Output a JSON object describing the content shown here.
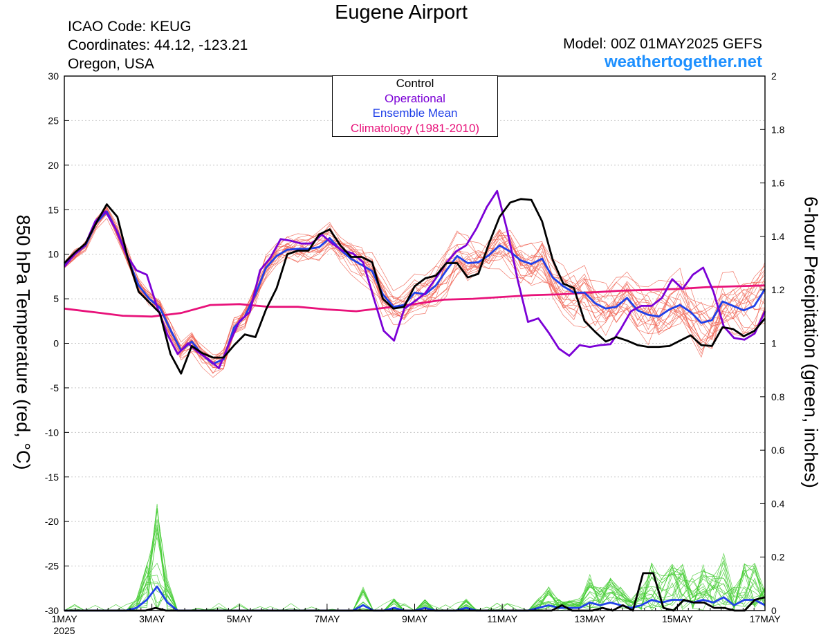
{
  "header": {
    "title": "Eugene Airport",
    "icao": "ICAO Code: KEUG",
    "coordinates": "Coordinates: 44.12, -123.21",
    "location": "Oregon, USA",
    "model": "Model: 00Z 01MAY2025 GEFS",
    "site": "weathertogether.net"
  },
  "legend": {
    "control": "Control",
    "operational": "Operational",
    "ensemble_mean": "Ensemble Mean",
    "climatology": "Climatology (1981-2010)"
  },
  "colors": {
    "control": "#000000",
    "operational": "#7b00d6",
    "ensemble_mean": "#2040e8",
    "climatology": "#e8127a",
    "members_temp": "#f06050",
    "members_precip": "#44cc33",
    "site": "#1e90ff"
  },
  "chart_data": {
    "type": "line",
    "title": "Eugene Airport",
    "ylabel_left": "850 hPa Temperature (red, °C)",
    "ylabel_right": "6-hour Precipitation (green, inches)",
    "y_left_range": [
      -30,
      30
    ],
    "y_right_range": [
      0,
      2
    ],
    "y_left_ticks": [
      "30",
      "25",
      "20",
      "15",
      "10",
      "5",
      "0",
      "-5",
      "-10",
      "-15",
      "-20",
      "-25",
      "-30"
    ],
    "y_right_ticks": [
      "2",
      "1.8",
      "1.6",
      "1.4",
      "1.2",
      "1",
      "0.8",
      "0.6",
      "0.4",
      "0.2",
      "0"
    ],
    "x_ticks": [
      "1MAY",
      "3MAY",
      "5MAY",
      "7MAY",
      "9MAY",
      "11MAY",
      "13MAY",
      "15MAY",
      "17MAY"
    ],
    "x_year_label": "2025",
    "x_step_hours": 6,
    "grid": "dashed horizontal",
    "legend_position": "top-center",
    "series": [
      {
        "name": "Control",
        "axis": "left",
        "values": [
          9,
          10.2,
          11.2,
          13.5,
          15.6,
          14.2,
          9.5,
          5.8,
          4.6,
          3.4,
          -1.2,
          -3.4,
          -0.3,
          -1.1,
          -1.6,
          -1.6,
          -0.2,
          1,
          0.7,
          3.8,
          6.2,
          10,
          10.4,
          10.4,
          12.2,
          12.8,
          11,
          9.7,
          9.7,
          9.1,
          5,
          3.9,
          4.1,
          6.4,
          7.3,
          7.6,
          9,
          9,
          7.4,
          7.8,
          11.2,
          14.2,
          15.8,
          16.2,
          16.1,
          13.7,
          9.4,
          6.7,
          6.2,
          2.5,
          1.3,
          0.2,
          0.7,
          0.3,
          -0.2,
          -0.4,
          -0.4,
          -0.3,
          0.3,
          0.9,
          -0.2,
          -0.3,
          1.8,
          1.6,
          0.8,
          1.4,
          2.8
        ]
      },
      {
        "name": "Operational",
        "axis": "left",
        "values": [
          8.6,
          10,
          11,
          13.7,
          14.8,
          12.8,
          10,
          8.2,
          7.7,
          4.1,
          1,
          -1.2,
          0,
          -1,
          -1.8,
          -2.8,
          0,
          2.5,
          3.5,
          8.2,
          9.6,
          11.7,
          11.5,
          11.2,
          11.2,
          12.2,
          11.2,
          10.4,
          10.1,
          9.1,
          5.2,
          1.4,
          0.3,
          3.9,
          4.7,
          5.6,
          7.2,
          8.9,
          10.3,
          11,
          12.9,
          15.3,
          17.1,
          12.6,
          7.1,
          2.4,
          2.8,
          1.2,
          -0.6,
          -1.4,
          -0.2,
          -0.4,
          -0.2,
          -0.1,
          1.6,
          3.6,
          4.2,
          4.2,
          5.1,
          7.2,
          6.1,
          7.7,
          8.5,
          5.8,
          1.9,
          0.6,
          0.4,
          1.1,
          3.6
        ]
      },
      {
        "name": "Ensemble Mean",
        "axis": "left",
        "values": [
          8.8,
          10,
          11,
          13.5,
          14.8,
          12.5,
          9.5,
          6.5,
          5,
          4,
          1.5,
          -0.8,
          0.2,
          -1.3,
          -2.3,
          -1.8,
          1.8,
          3,
          5.5,
          8.5,
          9.8,
          10.5,
          10.6,
          10.6,
          10.8,
          11.8,
          10.5,
          9.5,
          8.8,
          8.1,
          5.5,
          4.1,
          4.3,
          5.7,
          5.5,
          6.5,
          8.2,
          9.8,
          9,
          9.1,
          9.9,
          11,
          10.3,
          9.3,
          8.9,
          9.5,
          7.4,
          6.4,
          5.7,
          5.7,
          4.5,
          3.9,
          4.1,
          5.1,
          3.7,
          3.2,
          3,
          3.8,
          4.3,
          3.5,
          2.3,
          2.6,
          4.7,
          4.2,
          3.7,
          4.2,
          6.1
        ]
      },
      {
        "name": "Climatology (1981-2010)",
        "axis": "left",
        "values": [
          3.9,
          3.5,
          3.1,
          3,
          3.4,
          4.3,
          4.4,
          4.1,
          4.1,
          3.8,
          3.6,
          4,
          4.4,
          4.9,
          5,
          5.2,
          5.4,
          5.5,
          5.7,
          5.9,
          6,
          6.1,
          6.3,
          6.4,
          6.5
        ]
      },
      {
        "name": "Control",
        "axis": "right",
        "values": [
          0,
          0,
          0,
          0,
          0,
          0,
          0,
          0,
          0,
          0.01,
          0,
          0,
          0,
          0,
          0,
          0,
          0,
          0,
          0,
          0,
          0,
          0,
          0,
          0,
          0,
          0,
          0,
          0,
          0,
          0,
          0,
          0,
          0,
          0,
          0,
          0,
          0,
          0,
          0,
          0,
          0,
          0,
          0,
          0,
          0,
          0,
          0,
          0,
          0,
          0.02,
          0,
          0,
          0,
          0.01,
          0,
          0.02,
          0,
          0.14,
          0.14,
          0.01,
          0,
          0.04,
          0.03,
          0.03,
          0.01,
          0.01,
          0,
          0,
          0.04,
          0.05
        ]
      },
      {
        "name": "Ensemble Mean",
        "axis": "right",
        "values": [
          0,
          0,
          0,
          0,
          0,
          0,
          0,
          0.01,
          0.04,
          0.09,
          0.03,
          0,
          0,
          0,
          0,
          0,
          0,
          0,
          0,
          0,
          0,
          0,
          0,
          0,
          0,
          0,
          0,
          0,
          0,
          0.02,
          0,
          0,
          0.01,
          0,
          0,
          0.01,
          0,
          0,
          0,
          0.01,
          0,
          0,
          0,
          0,
          0,
          0,
          0.01,
          0.02,
          0.01,
          0.01,
          0.01,
          0.03,
          0.02,
          0.03,
          0.02,
          0.01,
          0.02,
          0.04,
          0.03,
          0.04,
          0.04,
          0.03,
          0.04,
          0.03,
          0.05,
          0.02,
          0.04,
          0.04,
          0.02
        ]
      }
    ]
  }
}
